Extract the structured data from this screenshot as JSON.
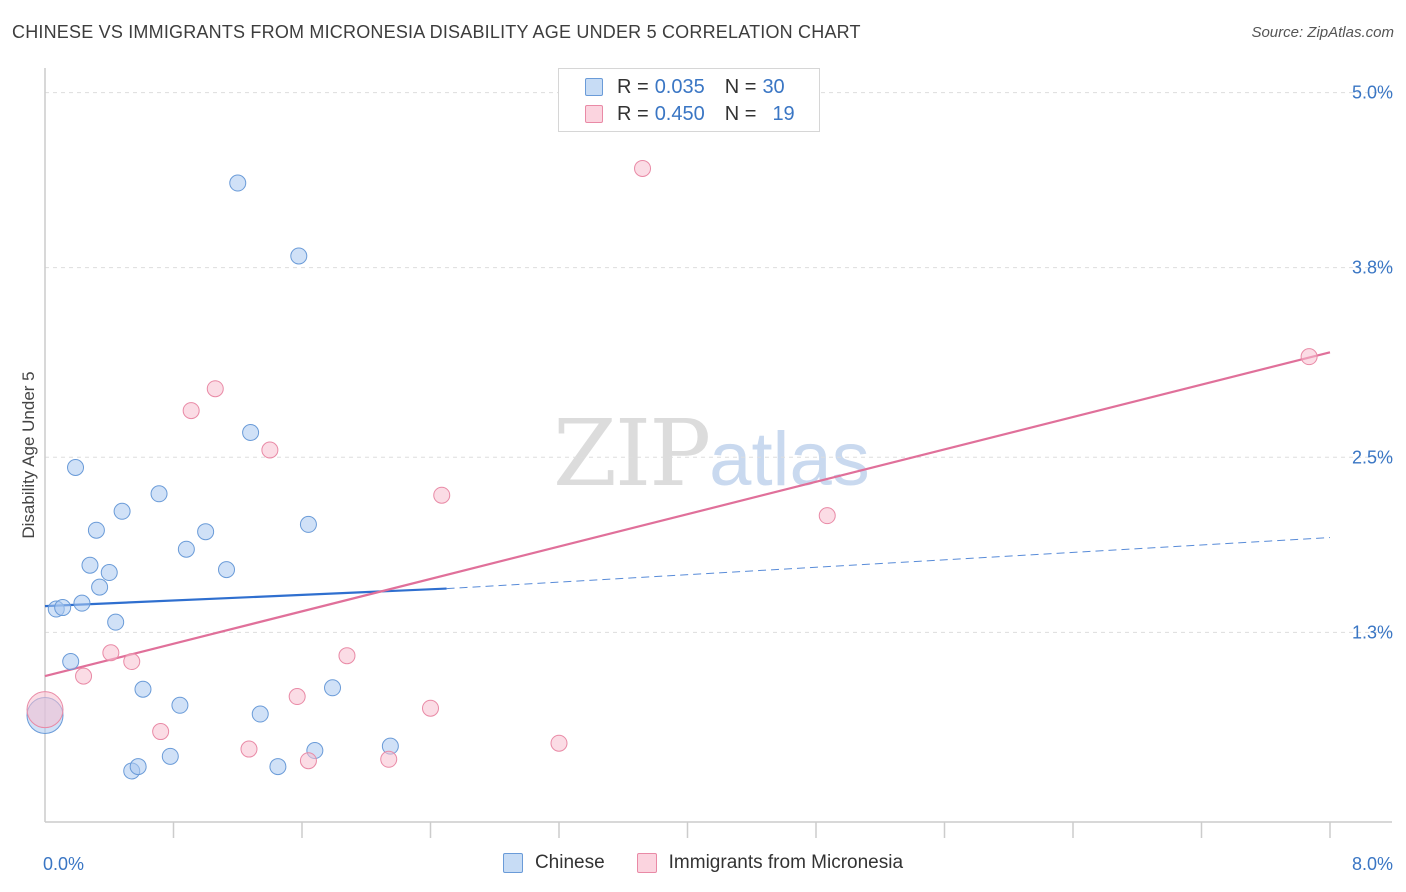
{
  "title": "CHINESE VS IMMIGRANTS FROM MICRONESIA DISABILITY AGE UNDER 5 CORRELATION CHART",
  "source": "Source: ZipAtlas.com",
  "watermark": {
    "zip": "ZIP",
    "atlas": "atlas"
  },
  "legend": {
    "rows": [
      {
        "r_label": "R =",
        "r_value": "0.035",
        "n_label": "N =",
        "n_value": "30",
        "color": "#a9c8f0",
        "border": "#6a9bd8"
      },
      {
        "r_label": "R =",
        "r_value": "0.450",
        "n_label": "N =",
        "n_value": "19",
        "color": "#f8c0d0",
        "border": "#e98aa6"
      }
    ]
  },
  "bottom_legend": [
    {
      "label": "Chinese",
      "color": "#bcd6f5",
      "border": "#6a9bd8"
    },
    {
      "label": "Immigrants from Micronesia",
      "color": "#f9cdd9",
      "border": "#e98aa6"
    }
  ],
  "chart_data": {
    "type": "scatter",
    "title": "CHINESE VS IMMIGRANTS FROM MICRONESIA DISABILITY AGE UNDER 5 CORRELATION CHART",
    "xlabel": "",
    "ylabel": "Disability Age Under 5",
    "xlim": [
      0,
      8
    ],
    "ylim": [
      0,
      5.1
    ],
    "x_tick_labels": [
      {
        "value": 0,
        "label": "0.0%"
      },
      {
        "value": 8,
        "label": "8.0%"
      }
    ],
    "y_tick_labels": [
      {
        "value": 1.3,
        "label": "1.3%"
      },
      {
        "value": 2.5,
        "label": "2.5%"
      },
      {
        "value": 3.8,
        "label": "3.8%"
      },
      {
        "value": 5.0,
        "label": "5.0%"
      }
    ],
    "x_minor_ticks": [
      0.8,
      1.6,
      2.4,
      3.2,
      4.0,
      4.8,
      5.6,
      6.4,
      7.2,
      8.0
    ],
    "series": [
      {
        "name": "Chinese",
        "color": "#a9c8f0",
        "stroke": "#6a9bd8",
        "points": [
          {
            "x": 0.0,
            "y": 0.73,
            "big": true
          },
          {
            "x": 0.07,
            "y": 1.46
          },
          {
            "x": 0.11,
            "y": 1.47
          },
          {
            "x": 0.16,
            "y": 1.1
          },
          {
            "x": 0.19,
            "y": 2.43
          },
          {
            "x": 0.23,
            "y": 1.5
          },
          {
            "x": 0.28,
            "y": 1.76
          },
          {
            "x": 0.32,
            "y": 2.0
          },
          {
            "x": 0.34,
            "y": 1.61
          },
          {
            "x": 0.4,
            "y": 1.71
          },
          {
            "x": 0.44,
            "y": 1.37
          },
          {
            "x": 0.48,
            "y": 2.13
          },
          {
            "x": 0.54,
            "y": 0.35
          },
          {
            "x": 0.58,
            "y": 0.38
          },
          {
            "x": 0.61,
            "y": 0.91
          },
          {
            "x": 0.78,
            "y": 0.45
          },
          {
            "x": 0.71,
            "y": 2.25
          },
          {
            "x": 0.84,
            "y": 0.8
          },
          {
            "x": 0.88,
            "y": 1.87
          },
          {
            "x": 1.0,
            "y": 1.99
          },
          {
            "x": 1.13,
            "y": 1.73
          },
          {
            "x": 1.2,
            "y": 4.38
          },
          {
            "x": 1.28,
            "y": 2.67
          },
          {
            "x": 1.34,
            "y": 0.74
          },
          {
            "x": 1.45,
            "y": 0.38
          },
          {
            "x": 1.58,
            "y": 3.88
          },
          {
            "x": 1.64,
            "y": 2.04
          },
          {
            "x": 1.68,
            "y": 0.49
          },
          {
            "x": 1.79,
            "y": 0.92
          },
          {
            "x": 2.15,
            "y": 0.52
          }
        ]
      },
      {
        "name": "Immigrants from Micronesia",
        "color": "#f8c0d0",
        "stroke": "#e98aa6",
        "points": [
          {
            "x": 0.0,
            "y": 0.77,
            "big": true
          },
          {
            "x": 0.24,
            "y": 1.0
          },
          {
            "x": 0.41,
            "y": 1.16
          },
          {
            "x": 0.54,
            "y": 1.1
          },
          {
            "x": 0.72,
            "y": 0.62
          },
          {
            "x": 0.91,
            "y": 2.82
          },
          {
            "x": 1.06,
            "y": 2.97
          },
          {
            "x": 1.27,
            "y": 0.5
          },
          {
            "x": 1.4,
            "y": 2.55
          },
          {
            "x": 1.57,
            "y": 0.86
          },
          {
            "x": 1.64,
            "y": 0.42
          },
          {
            "x": 1.88,
            "y": 1.14
          },
          {
            "x": 2.14,
            "y": 0.43
          },
          {
            "x": 2.4,
            "y": 0.78
          },
          {
            "x": 2.47,
            "y": 2.24
          },
          {
            "x": 3.2,
            "y": 0.54
          },
          {
            "x": 3.72,
            "y": 4.48
          },
          {
            "x": 4.87,
            "y": 2.1
          },
          {
            "x": 7.87,
            "y": 3.19
          }
        ]
      }
    ],
    "trendlines": [
      {
        "series": "Chinese",
        "color": "#2f6fcf",
        "x0": 0,
        "y0": 1.48,
        "x1": 2.5,
        "y1": 1.6,
        "dash_x1": 8,
        "dash_y1": 1.95
      },
      {
        "series": "Immigrants from Micronesia",
        "color": "#e0709a",
        "x0": 0,
        "y0": 1.0,
        "x1": 8,
        "y1": 3.22
      }
    ]
  }
}
